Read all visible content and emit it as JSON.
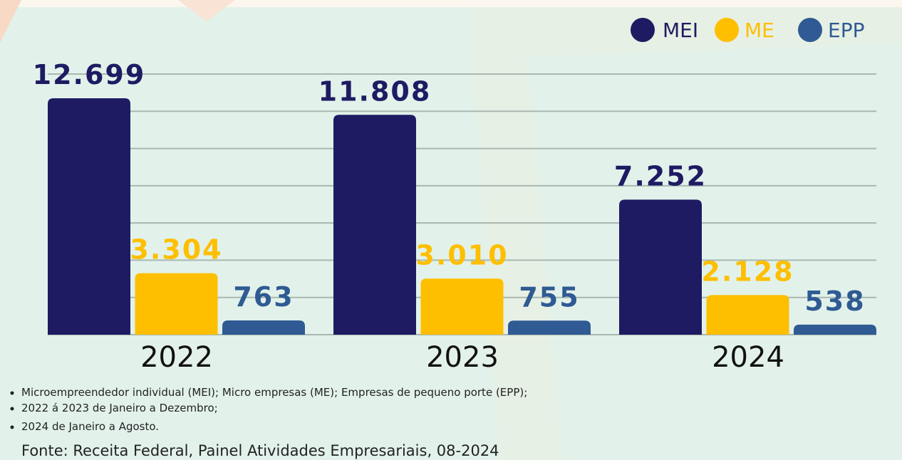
{
  "chart_data": {
    "type": "bar",
    "categories": [
      "2022",
      "2023",
      "2024"
    ],
    "series": [
      {
        "name": "MEI",
        "color": "#1e1b63",
        "values": [
          12699,
          11808,
          7252
        ],
        "value_labels": [
          "12.699",
          "11.808",
          "7.252"
        ]
      },
      {
        "name": "ME",
        "color": "#fdbf00",
        "values": [
          3304,
          3010,
          2128
        ],
        "value_labels": [
          "3.304",
          "3.010",
          "2.128"
        ]
      },
      {
        "name": "EPP",
        "color": "#2f5a93",
        "values": [
          763,
          755,
          538
        ],
        "value_labels": [
          "763",
          "755",
          "538"
        ]
      }
    ],
    "ylim": [
      0,
      14000
    ],
    "yticks": [
      0,
      2000,
      4000,
      6000,
      8000,
      10000,
      12000,
      14000
    ],
    "grid": true,
    "legend": "top-right"
  },
  "notes": [
    "Microempreendedor individual (MEI); Micro empresas (ME); Empresas de pequeno porte (EPP);",
    "2022 á 2023 de Janeiro a Dezembro;",
    "2024 de Janeiro a Agosto."
  ],
  "source": "Fonte: Receita Federal, Painel Atividades Empresariais, 08-2024"
}
